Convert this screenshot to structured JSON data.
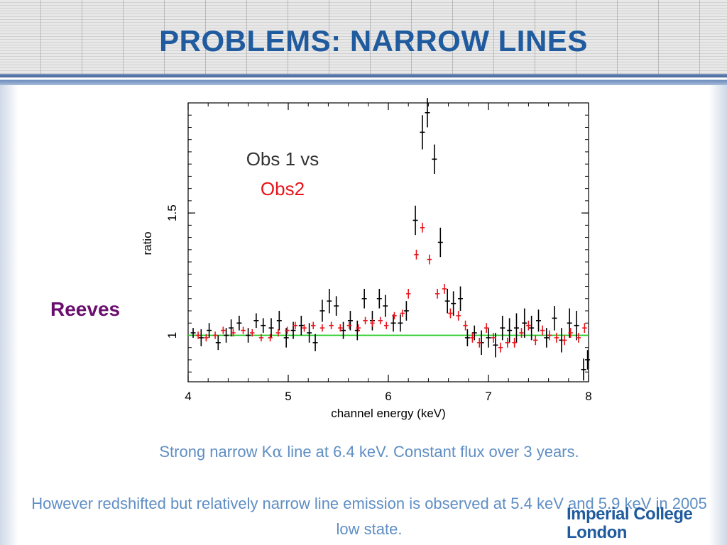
{
  "slide": {
    "title": "PROBLEMS: NARROW LINES",
    "side_label": "Reeves",
    "caption_line1_pre": "Strong narrow K",
    "caption_line1_symbol": "α",
    "caption_line1_post": " line at 6.4 keV. Constant flux over 3 years.",
    "caption_line2": "However redshifted  but relatively narrow line emission is observed at 5.4 keV and 5.9 keV in 2005 low state.",
    "logo_line1": "Imperial College",
    "logo_line2": "London"
  },
  "colors": {
    "title": "#1f5b9e",
    "side_label": "#6a0e6e",
    "caption": "#5f8ec4",
    "series_obs1": "#000000",
    "series_obs2": "#e8141b",
    "reference_line": "#22cc22"
  },
  "chart_data": {
    "type": "scatter",
    "title": "",
    "xlabel": "channel energy (keV)",
    "ylabel": "ratio",
    "xlim": [
      4,
      8
    ],
    "ylim": [
      0.81,
      1.95
    ],
    "xticks": [
      "4",
      "5",
      "6",
      "7",
      "8"
    ],
    "yticks": [
      "1",
      "1.5"
    ],
    "annotation_line1": "Obs 1 vs",
    "annotation_line2": "Obs2",
    "reference_line_y": 1.0,
    "series": [
      {
        "color": "#000000",
        "points": [
          {
            "x": 4.05,
            "y": 1.01,
            "err": 0.02
          },
          {
            "x": 4.13,
            "y": 0.99,
            "err": 0.035
          },
          {
            "x": 4.21,
            "y": 1.02,
            "err": 0.03
          },
          {
            "x": 4.3,
            "y": 0.97,
            "err": 0.03
          },
          {
            "x": 4.38,
            "y": 1.0,
            "err": 0.03
          },
          {
            "x": 4.43,
            "y": 1.03,
            "err": 0.035
          },
          {
            "x": 4.51,
            "y": 1.05,
            "err": 0.03
          },
          {
            "x": 4.6,
            "y": 1.0,
            "err": 0.03
          },
          {
            "x": 4.68,
            "y": 1.06,
            "err": 0.03
          },
          {
            "x": 4.75,
            "y": 1.04,
            "err": 0.03
          },
          {
            "x": 4.83,
            "y": 1.03,
            "err": 0.04
          },
          {
            "x": 4.91,
            "y": 1.06,
            "err": 0.04
          },
          {
            "x": 4.98,
            "y": 0.99,
            "err": 0.04
          },
          {
            "x": 5.05,
            "y": 1.02,
            "err": 0.035
          },
          {
            "x": 5.13,
            "y": 1.04,
            "err": 0.04
          },
          {
            "x": 5.21,
            "y": 1.01,
            "err": 0.04
          },
          {
            "x": 5.27,
            "y": 0.97,
            "err": 0.035
          },
          {
            "x": 5.34,
            "y": 1.1,
            "err": 0.045
          },
          {
            "x": 5.41,
            "y": 1.14,
            "err": 0.05
          },
          {
            "x": 5.48,
            "y": 1.12,
            "err": 0.04
          },
          {
            "x": 5.55,
            "y": 1.02,
            "err": 0.035
          },
          {
            "x": 5.62,
            "y": 1.06,
            "err": 0.04
          },
          {
            "x": 5.69,
            "y": 1.02,
            "err": 0.04
          },
          {
            "x": 5.76,
            "y": 1.15,
            "err": 0.04
          },
          {
            "x": 5.84,
            "y": 1.06,
            "err": 0.04
          },
          {
            "x": 5.91,
            "y": 1.15,
            "err": 0.04
          },
          {
            "x": 5.97,
            "y": 1.12,
            "err": 0.045
          },
          {
            "x": 6.05,
            "y": 1.05,
            "err": 0.035
          },
          {
            "x": 6.12,
            "y": 1.05,
            "err": 0.035
          },
          {
            "x": 6.18,
            "y": 1.1,
            "err": 0.04
          },
          {
            "x": 6.27,
            "y": 1.47,
            "err": 0.06
          },
          {
            "x": 6.34,
            "y": 1.83,
            "err": 0.07
          },
          {
            "x": 6.39,
            "y": 1.91,
            "err": 0.06
          },
          {
            "x": 6.46,
            "y": 1.72,
            "err": 0.06
          },
          {
            "x": 6.52,
            "y": 1.38,
            "err": 0.06
          },
          {
            "x": 6.59,
            "y": 1.14,
            "err": 0.05
          },
          {
            "x": 6.65,
            "y": 1.13,
            "err": 0.05
          },
          {
            "x": 6.72,
            "y": 1.15,
            "err": 0.05
          },
          {
            "x": 6.79,
            "y": 0.99,
            "err": 0.035
          },
          {
            "x": 6.86,
            "y": 1.01,
            "err": 0.03
          },
          {
            "x": 6.93,
            "y": 0.97,
            "err": 0.05
          },
          {
            "x": 7.0,
            "y": 0.99,
            "err": 0.04
          },
          {
            "x": 7.07,
            "y": 0.96,
            "err": 0.05
          },
          {
            "x": 7.14,
            "y": 1.03,
            "err": 0.05
          },
          {
            "x": 7.21,
            "y": 1.02,
            "err": 0.05
          },
          {
            "x": 7.28,
            "y": 1.03,
            "err": 0.06
          },
          {
            "x": 7.36,
            "y": 1.05,
            "err": 0.06
          },
          {
            "x": 7.43,
            "y": 1.03,
            "err": 0.05
          },
          {
            "x": 7.5,
            "y": 1.06,
            "err": 0.045
          },
          {
            "x": 7.58,
            "y": 0.99,
            "err": 0.04
          },
          {
            "x": 7.66,
            "y": 1.07,
            "err": 0.05
          },
          {
            "x": 7.73,
            "y": 0.98,
            "err": 0.05
          },
          {
            "x": 7.81,
            "y": 1.05,
            "err": 0.06
          },
          {
            "x": 7.88,
            "y": 1.04,
            "err": 0.06
          },
          {
            "x": 7.95,
            "y": 0.86,
            "err": 0.045
          },
          {
            "x": 7.99,
            "y": 0.9,
            "err": 0.04
          }
        ]
      },
      {
        "color": "#e8141b",
        "points": [
          {
            "x": 4.1,
            "y": 1.0,
            "err": 0.015
          },
          {
            "x": 4.18,
            "y": 0.99,
            "err": 0.015
          },
          {
            "x": 4.27,
            "y": 1.0,
            "err": 0.015
          },
          {
            "x": 4.35,
            "y": 1.02,
            "err": 0.015
          },
          {
            "x": 4.45,
            "y": 1.01,
            "err": 0.015
          },
          {
            "x": 4.55,
            "y": 1.02,
            "err": 0.015
          },
          {
            "x": 4.64,
            "y": 1.01,
            "err": 0.015
          },
          {
            "x": 4.73,
            "y": 0.99,
            "err": 0.015
          },
          {
            "x": 4.82,
            "y": 0.99,
            "err": 0.015
          },
          {
            "x": 4.9,
            "y": 1.01,
            "err": 0.015
          },
          {
            "x": 4.99,
            "y": 1.02,
            "err": 0.015
          },
          {
            "x": 5.07,
            "y": 1.04,
            "err": 0.015
          },
          {
            "x": 5.16,
            "y": 1.03,
            "err": 0.015
          },
          {
            "x": 5.25,
            "y": 1.04,
            "err": 0.015
          },
          {
            "x": 5.34,
            "y": 1.03,
            "err": 0.015
          },
          {
            "x": 5.43,
            "y": 1.04,
            "err": 0.015
          },
          {
            "x": 5.52,
            "y": 1.03,
            "err": 0.015
          },
          {
            "x": 5.61,
            "y": 1.04,
            "err": 0.015
          },
          {
            "x": 5.7,
            "y": 1.03,
            "err": 0.015
          },
          {
            "x": 5.77,
            "y": 1.06,
            "err": 0.015
          },
          {
            "x": 5.84,
            "y": 1.05,
            "err": 0.015
          },
          {
            "x": 5.92,
            "y": 1.06,
            "err": 0.015
          },
          {
            "x": 5.98,
            "y": 1.04,
            "err": 0.015
          },
          {
            "x": 6.06,
            "y": 1.08,
            "err": 0.015
          },
          {
            "x": 6.14,
            "y": 1.09,
            "err": 0.015
          },
          {
            "x": 6.2,
            "y": 1.17,
            "err": 0.02
          },
          {
            "x": 6.28,
            "y": 1.33,
            "err": 0.02
          },
          {
            "x": 6.34,
            "y": 1.44,
            "err": 0.02
          },
          {
            "x": 6.41,
            "y": 1.31,
            "err": 0.02
          },
          {
            "x": 6.49,
            "y": 1.17,
            "err": 0.02
          },
          {
            "x": 6.56,
            "y": 1.19,
            "err": 0.02
          },
          {
            "x": 6.62,
            "y": 1.09,
            "err": 0.02
          },
          {
            "x": 6.7,
            "y": 1.08,
            "err": 0.02
          },
          {
            "x": 6.77,
            "y": 1.04,
            "err": 0.02
          },
          {
            "x": 6.84,
            "y": 0.99,
            "err": 0.02
          },
          {
            "x": 6.91,
            "y": 0.97,
            "err": 0.02
          },
          {
            "x": 6.98,
            "y": 1.03,
            "err": 0.02
          },
          {
            "x": 7.05,
            "y": 0.99,
            "err": 0.02
          },
          {
            "x": 7.12,
            "y": 0.95,
            "err": 0.02
          },
          {
            "x": 7.19,
            "y": 0.97,
            "err": 0.02
          },
          {
            "x": 7.26,
            "y": 0.97,
            "err": 0.02
          },
          {
            "x": 7.33,
            "y": 1.01,
            "err": 0.02
          },
          {
            "x": 7.4,
            "y": 1.04,
            "err": 0.02
          },
          {
            "x": 7.47,
            "y": 0.98,
            "err": 0.02
          },
          {
            "x": 7.54,
            "y": 1.02,
            "err": 0.02
          },
          {
            "x": 7.61,
            "y": 1.0,
            "err": 0.02
          },
          {
            "x": 7.68,
            "y": 0.99,
            "err": 0.02
          },
          {
            "x": 7.76,
            "y": 0.98,
            "err": 0.02
          },
          {
            "x": 7.82,
            "y": 1.01,
            "err": 0.02
          },
          {
            "x": 7.9,
            "y": 0.99,
            "err": 0.02
          },
          {
            "x": 7.96,
            "y": 1.03,
            "err": 0.02
          }
        ]
      }
    ]
  }
}
